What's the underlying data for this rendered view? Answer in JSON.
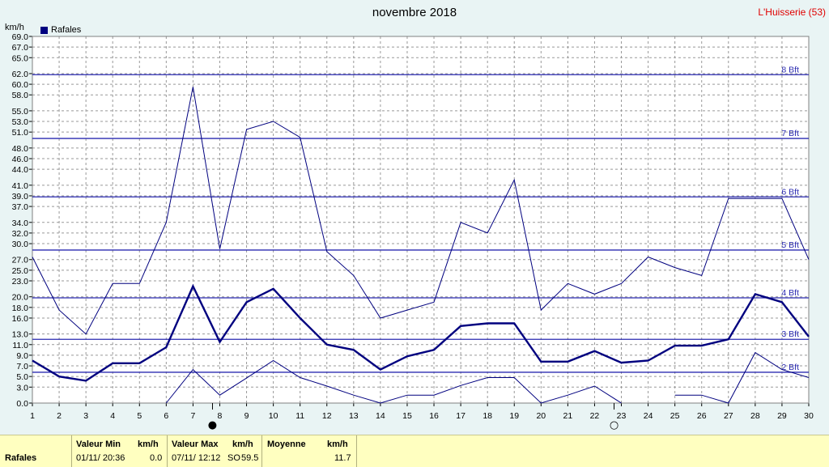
{
  "title": "novembre 2018",
  "station": "L'Huisserie (53)",
  "unit": "km/h",
  "legend": {
    "label": "Rafales",
    "color": "#00007f"
  },
  "chart_data": {
    "type": "line",
    "ylim": [
      0,
      69
    ],
    "y_ticks": [
      "0.0",
      "3.0",
      "5.0",
      "7.0",
      "9.0",
      "11.0",
      "13.0",
      "16.0",
      "18.0",
      "20.0",
      "23.0",
      "25.0",
      "27.0",
      "30.0",
      "32.0",
      "34.0",
      "37.0",
      "39.0",
      "41.0",
      "44.0",
      "46.0",
      "48.0",
      "51.0",
      "53.0",
      "55.0",
      "58.0",
      "60.0",
      "62.0",
      "65.0",
      "67.0",
      "69.0"
    ],
    "x": [
      1,
      2,
      3,
      4,
      5,
      6,
      7,
      8,
      9,
      10,
      11,
      12,
      13,
      14,
      15,
      16,
      17,
      18,
      19,
      20,
      21,
      22,
      23,
      24,
      25,
      26,
      27,
      28,
      29,
      30
    ],
    "beaufort": [
      {
        "label": "2 Bft",
        "value": 5.8
      },
      {
        "label": "3 Bft",
        "value": 12.0
      },
      {
        "label": "4 Bft",
        "value": 19.8
      },
      {
        "label": "5 Bft",
        "value": 28.8
      },
      {
        "label": "6 Bft",
        "value": 38.8
      },
      {
        "label": "7 Bft",
        "value": 49.8
      },
      {
        "label": "8 Bft",
        "value": 61.8
      }
    ],
    "series": [
      {
        "values": [
          27.5,
          17.5,
          13.0,
          22.5,
          22.5,
          34.0,
          59.5,
          29.0,
          51.5,
          53.0,
          50.0,
          28.5,
          24.0,
          16.0,
          17.5,
          19.0,
          34.0,
          32.0,
          42.0,
          17.5,
          22.5,
          20.5,
          22.5,
          27.5,
          25.5,
          24.0,
          38.5,
          38.5,
          38.5,
          27.0
        ]
      },
      {
        "values": [
          8.0,
          5.0,
          4.2,
          7.5,
          7.5,
          10.5,
          22.0,
          11.5,
          19.0,
          21.5,
          16.0,
          11.0,
          10.0,
          6.3,
          8.8,
          10.0,
          14.5,
          15.0,
          15.0,
          7.8,
          7.8,
          9.8,
          7.6,
          8.0,
          10.8,
          10.8,
          12.0,
          20.5,
          19.0,
          12.5
        ]
      },
      {
        "values": [
          null,
          null,
          null,
          null,
          null,
          0.0,
          6.3,
          1.5,
          4.7,
          8.0,
          4.8,
          3.2,
          1.5,
          0.0,
          1.5,
          1.5,
          3.3,
          4.8,
          4.8,
          0.0,
          1.5,
          3.2,
          0.0,
          null,
          1.5,
          1.5,
          0.0,
          9.5,
          6.3,
          4.8
        ]
      }
    ],
    "markers": [
      {
        "day": 8,
        "symbol": "●"
      },
      {
        "day": 23,
        "symbol": "○"
      }
    ]
  },
  "footer": {
    "row_label": "Rafales",
    "min_header": "Valeur Min",
    "min_unit": "km/h",
    "min_date": "01/11/  20:36",
    "min_value": "0.0",
    "max_header": "Valeur Max",
    "max_unit": "km/h",
    "max_date": "07/11/  12:12",
    "max_dir": "SO",
    "max_value": "59.5",
    "avg_header": "Moyenne",
    "avg_unit": "km/h",
    "avg_value": "11.7"
  }
}
